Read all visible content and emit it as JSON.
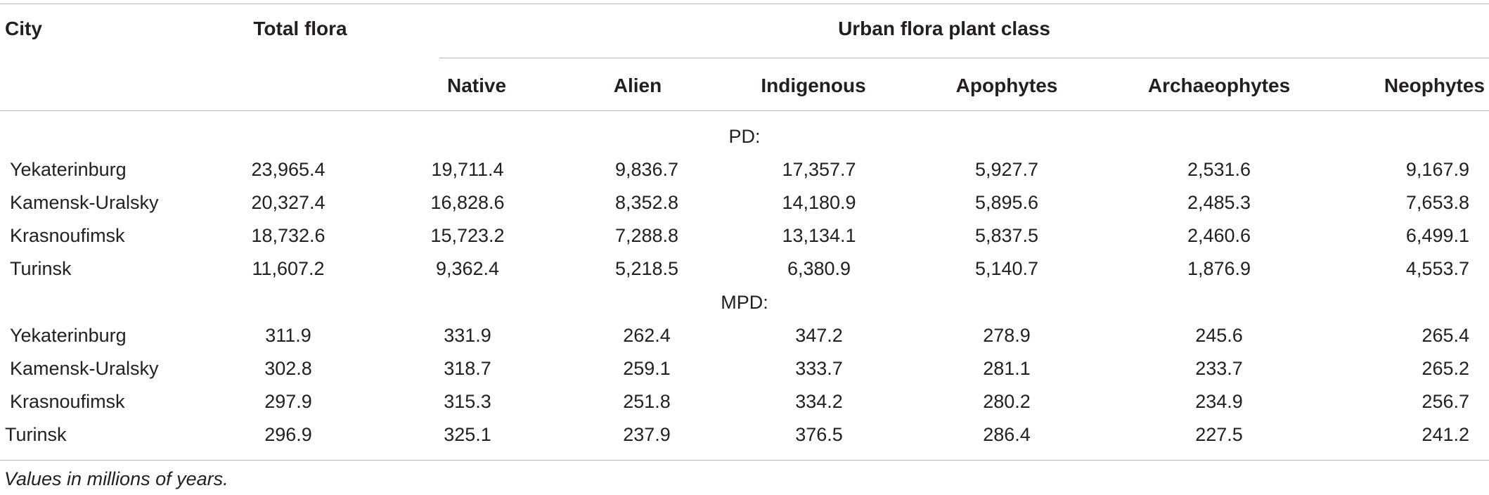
{
  "table": {
    "headers": {
      "city": "City",
      "total": "Total flora",
      "group": "Urban flora plant class",
      "classes": [
        "Native",
        "Alien",
        "Indigenous",
        "Apophytes",
        "Archaeophytes",
        "Neophytes"
      ]
    },
    "sections": [
      {
        "label": "PD:",
        "rows": [
          {
            "city": "Yekaterinburg",
            "values": [
              "23,965.4",
              "19,711.4",
              "9,836.7",
              "17,357.7",
              "5,927.7",
              "2,531.6",
              "9,167.9"
            ]
          },
          {
            "city": "Kamensk-Uralsky",
            "values": [
              "20,327.4",
              "16,828.6",
              "8,352.8",
              "14,180.9",
              "5,895.6",
              "2,485.3",
              "7,653.8"
            ]
          },
          {
            "city": "Krasnoufimsk",
            "values": [
              "18,732.6",
              "15,723.2",
              "7,288.8",
              "13,134.1",
              "5,837.5",
              "2,460.6",
              "6,499.1"
            ]
          },
          {
            "city": "Turinsk",
            "values": [
              "11,607.2",
              "9,362.4",
              "5,218.5",
              "6,380.9",
              "5,140.7",
              "1,876.9",
              "4,553.7"
            ]
          }
        ]
      },
      {
        "label": "MPD:",
        "rows": [
          {
            "city": "Yekaterinburg",
            "values": [
              "311.9",
              "331.9",
              "262.4",
              "347.2",
              "278.9",
              "245.6",
              "265.4"
            ]
          },
          {
            "city": "Kamensk-Uralsky",
            "values": [
              "302.8",
              "318.7",
              "259.1",
              "333.7",
              "281.1",
              "233.7",
              "265.2"
            ]
          },
          {
            "city": "Krasnoufimsk",
            "values": [
              "297.9",
              "315.3",
              "251.8",
              "334.2",
              "280.2",
              "234.9",
              "256.7"
            ]
          },
          {
            "city": "Turinsk",
            "values": [
              "296.9",
              "325.1",
              "237.9",
              "376.5",
              "286.4",
              "227.5",
              "241.2"
            ]
          }
        ]
      }
    ],
    "footnote": "Values in millions of years."
  }
}
